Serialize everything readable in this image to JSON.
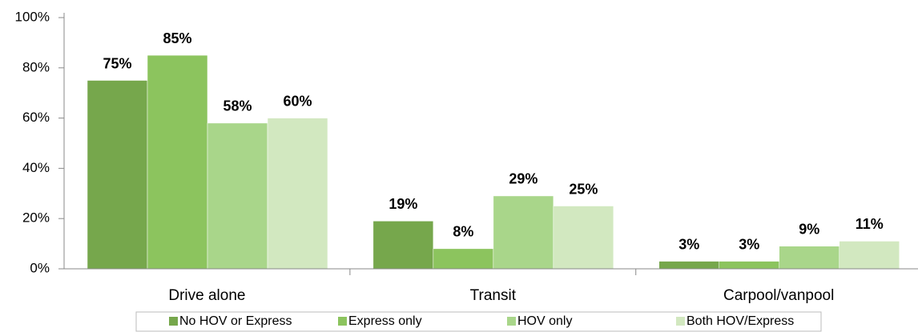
{
  "chart_data": {
    "type": "bar",
    "categories": [
      "Drive alone",
      "Transit",
      "Carpool/vanpool"
    ],
    "series": [
      {
        "name": "No HOV or Express",
        "color": "#76a74c",
        "values": [
          75,
          19,
          3
        ],
        "value_labels": [
          "75%",
          "19%",
          "3%"
        ]
      },
      {
        "name": "Express only",
        "color": "#8cc45e",
        "values": [
          85,
          8,
          3
        ],
        "value_labels": [
          "85%",
          "8%",
          "3%"
        ]
      },
      {
        "name": "HOV only",
        "color": "#a9d68a",
        "values": [
          58,
          29,
          9
        ],
        "value_labels": [
          "58%",
          "29%",
          "9%"
        ]
      },
      {
        "name": "Both HOV/Express",
        "color": "#d2e8c0",
        "values": [
          60,
          25,
          11
        ],
        "value_labels": [
          "60%",
          "25%",
          "11%"
        ]
      }
    ],
    "ylim": [
      0,
      100
    ],
    "yticks": [
      {
        "value": 0,
        "label": "0%"
      },
      {
        "value": 20,
        "label": "20%"
      },
      {
        "value": 40,
        "label": "40%"
      },
      {
        "value": 60,
        "label": "60%"
      },
      {
        "value": 80,
        "label": "80%"
      },
      {
        "value": 100,
        "label": "100%"
      }
    ],
    "legend": "bottom"
  }
}
